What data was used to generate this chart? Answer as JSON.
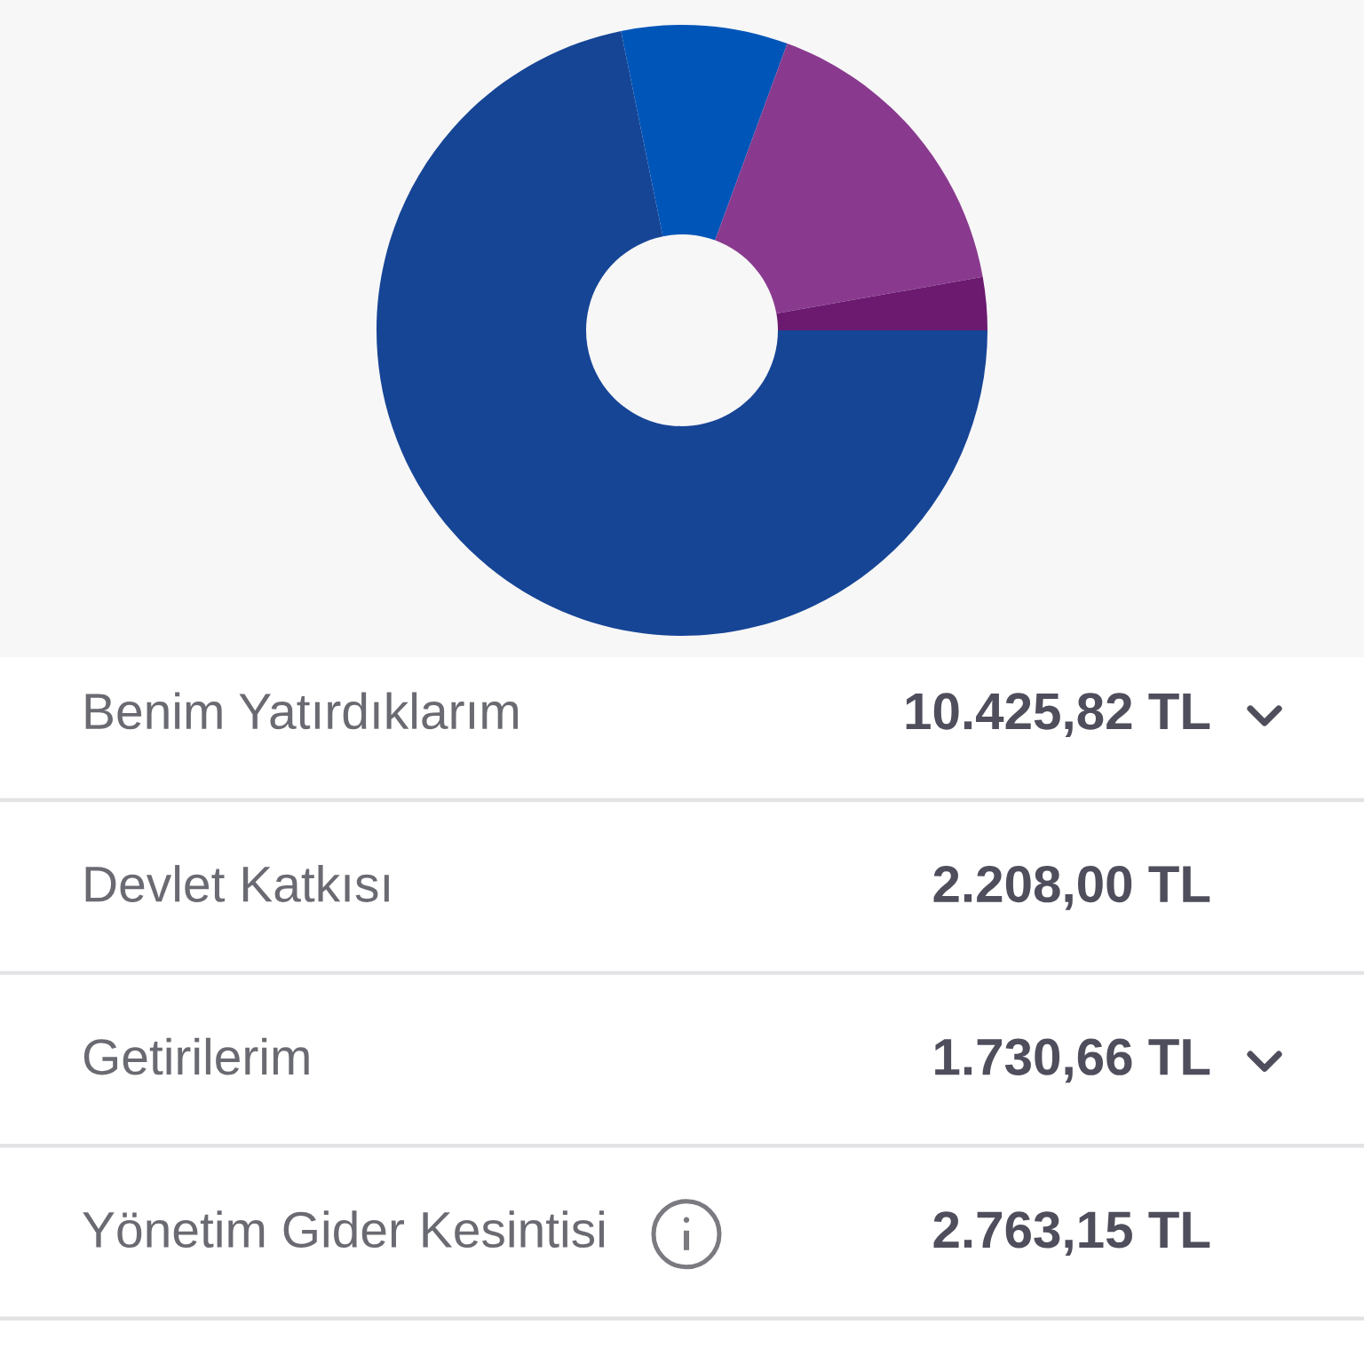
{
  "chart_data": [
    {
      "type": "donut",
      "categories": [
        null,
        null,
        null,
        null
      ],
      "values": [
        71.8,
        8.8,
        16.6,
        2.8
      ],
      "colors": [
        "#164596",
        "#0055b8",
        "#893a8e",
        "#6b1a70"
      ]
    },
    {
      "type": "other",
      "categories": [
        "Benim Yatırdıklarım",
        "Devlet Katkısı",
        "Getirilerim",
        "Yönetim Gider Kesintisi"
      ],
      "value_labels": [
        "10.425,82 TL",
        "2.208,00 TL",
        "1.730,66 TL",
        "2.763,15 TL"
      ]
    }
  ]
}
